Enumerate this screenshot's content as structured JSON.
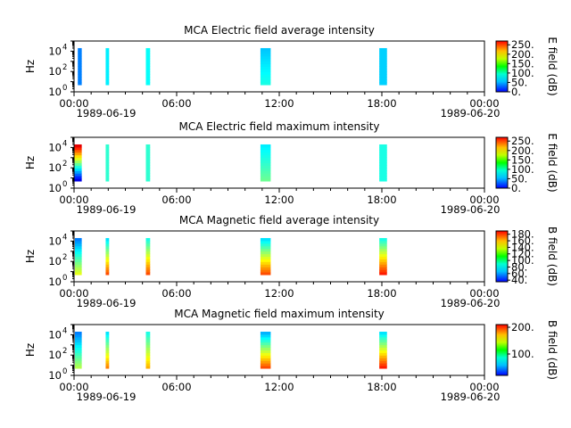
{
  "chart_data": [
    {
      "type": "heatmap",
      "title": "MCA  Electric field average intensity",
      "ylabel": "Hz",
      "y_scale": "log",
      "ylim": [
        1,
        100000
      ],
      "y_ticks": [
        "10",
        "10",
        "10"
      ],
      "y_tick_exponents": [
        "0",
        "2",
        "4"
      ],
      "x_ticks": [
        "00:00",
        "06:00",
        "12:00",
        "18:00",
        "00:00"
      ],
      "x_date_labels": [
        "1989-06-19",
        "1989-06-20"
      ],
      "colorbar": {
        "label": "E field (dB)",
        "vmin": 0,
        "vmax": 270,
        "ticks": [
          "0.",
          "50.",
          "100.",
          "150.",
          "200.",
          "250."
        ],
        "tick_values": [
          0,
          50,
          100,
          150,
          200,
          250
        ]
      },
      "passes": [
        {
          "t_start": 0.22,
          "t_end": 0.45,
          "f_min": 5,
          "f_max": 20000,
          "level_low": 0.25,
          "level_high": 0.25
        },
        {
          "t_start": 1.85,
          "t_end": 2.05,
          "f_min": 5,
          "f_max": 20000,
          "level_low": 0.36,
          "level_high": 0.36
        },
        {
          "t_start": 4.2,
          "t_end": 4.45,
          "f_min": 5,
          "f_max": 20000,
          "level_low": 0.38,
          "level_high": 0.38
        },
        {
          "t_start": 10.9,
          "t_end": 11.5,
          "f_min": 5,
          "f_max": 20000,
          "level_low": 0.4,
          "level_high": 0.32
        },
        {
          "t_start": 17.85,
          "t_end": 18.3,
          "f_min": 5,
          "f_max": 20000,
          "level_low": 0.33,
          "level_high": 0.33
        }
      ]
    },
    {
      "type": "heatmap",
      "title": "MCA  Electric field maximum intensity",
      "ylabel": "Hz",
      "y_scale": "log",
      "ylim": [
        1,
        100000
      ],
      "y_ticks": [
        "10",
        "10",
        "10"
      ],
      "y_tick_exponents": [
        "0",
        "2",
        "4"
      ],
      "x_ticks": [
        "00:00",
        "06:00",
        "12:00",
        "18:00",
        "00:00"
      ],
      "x_date_labels": [
        "1989-06-19",
        "1989-06-20"
      ],
      "colorbar": {
        "label": "E field (dB)",
        "vmin": 0,
        "vmax": 270,
        "ticks": [
          "0.",
          "50.",
          "100.",
          "150.",
          "200.",
          "250."
        ],
        "tick_values": [
          0,
          50,
          100,
          150,
          200,
          250
        ]
      },
      "passes": [
        {
          "t_start": 0.0,
          "t_end": 0.45,
          "f_min": 5,
          "f_max": 20000,
          "level_low": 0.1,
          "level_high": 0.9
        },
        {
          "t_start": 1.85,
          "t_end": 2.05,
          "f_min": 5,
          "f_max": 20000,
          "level_low": 0.42,
          "level_high": 0.42
        },
        {
          "t_start": 4.2,
          "t_end": 4.45,
          "f_min": 5,
          "f_max": 20000,
          "level_low": 0.42,
          "level_high": 0.42
        },
        {
          "t_start": 10.9,
          "t_end": 11.5,
          "f_min": 5,
          "f_max": 20000,
          "level_low": 0.48,
          "level_high": 0.36
        },
        {
          "t_start": 17.85,
          "t_end": 18.3,
          "f_min": 5,
          "f_max": 20000,
          "level_low": 0.4,
          "level_high": 0.4
        }
      ]
    },
    {
      "type": "heatmap",
      "title": "MCA  Magnetic field average intensity",
      "ylabel": "Hz",
      "y_scale": "log",
      "ylim": [
        1,
        100000
      ],
      "y_ticks": [
        "10",
        "10",
        "10"
      ],
      "y_tick_exponents": [
        "0",
        "2",
        "4"
      ],
      "x_ticks": [
        "00:00",
        "06:00",
        "12:00",
        "18:00",
        "00:00"
      ],
      "x_date_labels": [
        "1989-06-19",
        "1989-06-20"
      ],
      "colorbar": {
        "label": "B field (dB)",
        "vmin": 35,
        "vmax": 190,
        "ticks": [
          "40.",
          "60.",
          "80.",
          "100.",
          "120.",
          "140.",
          "160.",
          "180."
        ],
        "tick_values": [
          40,
          60,
          80,
          100,
          120,
          140,
          160,
          180
        ]
      },
      "passes": [
        {
          "t_start": 0.05,
          "t_end": 0.45,
          "f_min": 5,
          "f_max": 20000,
          "level_low": 0.6,
          "level_high": 0.25
        },
        {
          "t_start": 1.85,
          "t_end": 2.05,
          "f_min": 5,
          "f_max": 20000,
          "level_low": 0.8,
          "level_high": 0.35
        },
        {
          "t_start": 4.2,
          "t_end": 4.45,
          "f_min": 5,
          "f_max": 20000,
          "level_low": 0.8,
          "level_high": 0.4
        },
        {
          "t_start": 10.9,
          "t_end": 11.5,
          "f_min": 5,
          "f_max": 20000,
          "level_low": 0.8,
          "level_high": 0.35
        },
        {
          "t_start": 17.85,
          "t_end": 18.3,
          "f_min": 5,
          "f_max": 20000,
          "level_low": 0.85,
          "level_high": 0.4
        }
      ]
    },
    {
      "type": "heatmap",
      "title": "MCA  Magnetic field maximum intensity",
      "ylabel": "Hz",
      "y_scale": "log",
      "ylim": [
        1,
        100000
      ],
      "y_ticks": [
        "10",
        "10",
        "10"
      ],
      "y_tick_exponents": [
        "0",
        "2",
        "4"
      ],
      "x_ticks": [
        "00:00",
        "06:00",
        "12:00",
        "18:00",
        "00:00"
      ],
      "x_date_labels": [
        "1989-06-19",
        "1989-06-20"
      ],
      "colorbar": {
        "label": "B field (dB)",
        "vmin": 20,
        "vmax": 210,
        "ticks": [
          "100.",
          "200."
        ],
        "tick_values": [
          100,
          200
        ]
      },
      "passes": [
        {
          "t_start": 0.05,
          "t_end": 0.45,
          "f_min": 5,
          "f_max": 20000,
          "level_low": 0.55,
          "level_high": 0.25
        },
        {
          "t_start": 1.85,
          "t_end": 2.05,
          "f_min": 5,
          "f_max": 20000,
          "level_low": 0.75,
          "level_high": 0.35
        },
        {
          "t_start": 4.2,
          "t_end": 4.45,
          "f_min": 5,
          "f_max": 20000,
          "level_low": 0.7,
          "level_high": 0.4
        },
        {
          "t_start": 10.9,
          "t_end": 11.5,
          "f_min": 5,
          "f_max": 20000,
          "level_low": 0.8,
          "level_high": 0.3
        },
        {
          "t_start": 17.85,
          "t_end": 18.3,
          "f_min": 5,
          "f_max": 20000,
          "level_low": 0.85,
          "level_high": 0.35
        }
      ]
    }
  ]
}
